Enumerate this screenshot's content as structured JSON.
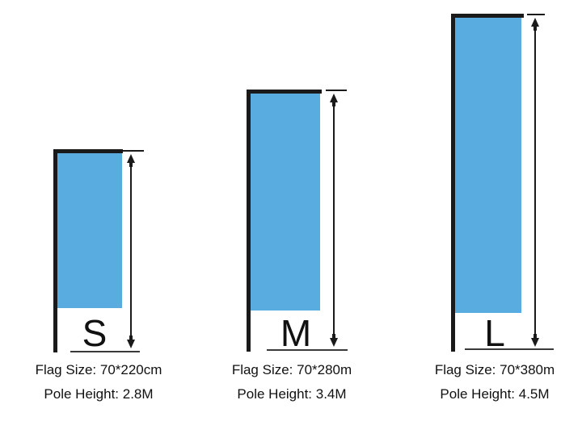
{
  "colors": {
    "flag": "#58ACDF",
    "pole": "#1a1a1a",
    "line": "#3a3a3a",
    "text": "#111111",
    "bg": "#ffffff"
  },
  "panels": [
    {
      "id": "s",
      "letter": "S",
      "flag_size": "Flag Size: 70*220cm",
      "pole_height": "Pole Height: 2.8M",
      "flag_size_value": "70*220cm",
      "pole_height_value": "2.8M"
    },
    {
      "id": "m",
      "letter": "M",
      "flag_size": "Flag Size: 70*280m",
      "pole_height": "Pole Height: 3.4M",
      "flag_size_value": "70*280m",
      "pole_height_value": "3.4M"
    },
    {
      "id": "l",
      "letter": "L",
      "flag_size": "Flag Size: 70*380m",
      "pole_height": "Pole Height: 4.5M",
      "flag_size_value": "70*380m",
      "pole_height_value": "4.5M"
    }
  ]
}
